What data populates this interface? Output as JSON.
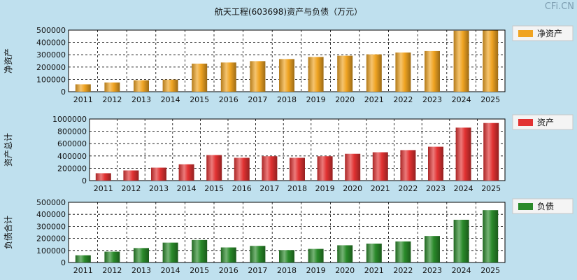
{
  "title": "航天工程(603698)资产与负债（万元）",
  "watermark": "CFi.CN",
  "colors": {
    "background": "#bfe0ee",
    "plot_background": "#ffffff",
    "net_assets": "#f0a422",
    "assets": "#e23232",
    "liabilities": "#2a8a2a"
  },
  "chart_data": [
    {
      "type": "bar",
      "title": "",
      "xlabel": "",
      "ylabel": "净资产",
      "legend": "净资产",
      "color_key": "net_assets",
      "categories": [
        "2011",
        "2012",
        "2013",
        "2014",
        "2015",
        "2016",
        "2017",
        "2018",
        "2019",
        "2020",
        "2021",
        "2022",
        "2023",
        "2024",
        "2025"
      ],
      "values": [
        60000,
        75000,
        93000,
        98000,
        228000,
        237000,
        248000,
        265000,
        282000,
        292000,
        303000,
        318000,
        330000,
        495000,
        497000
      ],
      "ylim": [
        0,
        500000
      ],
      "yticks": [
        "500000",
        "400000",
        "300000",
        "200000",
        "100000",
        "0"
      ]
    },
    {
      "type": "bar",
      "title": "",
      "xlabel": "",
      "ylabel": "资产总计",
      "legend": "资产",
      "color_key": "assets",
      "categories": [
        "2011",
        "2012",
        "2013",
        "2014",
        "2015",
        "2016",
        "2017",
        "2018",
        "2019",
        "2020",
        "2021",
        "2022",
        "2023",
        "2024",
        "2025"
      ],
      "values": [
        120000,
        165000,
        210000,
        265000,
        415000,
        370000,
        395000,
        370000,
        395000,
        435000,
        460000,
        495000,
        550000,
        860000,
        935000
      ],
      "ylim": [
        0,
        1000000
      ],
      "yticks": [
        "1000000",
        "800000",
        "600000",
        "400000",
        "200000",
        "0"
      ]
    },
    {
      "type": "bar",
      "title": "",
      "xlabel": "",
      "ylabel": "负债合计",
      "legend": "负债",
      "color_key": "liabilities",
      "categories": [
        "2011",
        "2012",
        "2013",
        "2014",
        "2015",
        "2016",
        "2017",
        "2018",
        "2019",
        "2020",
        "2021",
        "2022",
        "2023",
        "2024",
        "2025"
      ],
      "values": [
        60000,
        90000,
        120000,
        165000,
        187000,
        125000,
        138000,
        103000,
        113000,
        143000,
        157000,
        175000,
        220000,
        355000,
        435000
      ],
      "ylim": [
        0,
        500000
      ],
      "yticks": [
        "500000",
        "400000",
        "300000",
        "200000",
        "100000",
        "0"
      ]
    }
  ]
}
